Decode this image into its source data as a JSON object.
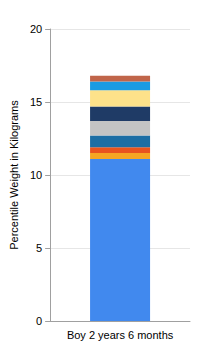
{
  "chart_data": {
    "type": "bar",
    "stacked": true,
    "ylabel": "Percentile Weight in Kilograms",
    "categories": [
      "Boy 2 years 6 months"
    ],
    "series": [
      {
        "color": "#4189ee",
        "values": [
          11.1
        ]
      },
      {
        "color": "#f5a623",
        "values": [
          0.4
        ]
      },
      {
        "color": "#e8541e",
        "values": [
          0.4
        ]
      },
      {
        "color": "#1c6ea4",
        "values": [
          0.8
        ]
      },
      {
        "color": "#c4c4c4",
        "values": [
          1.0
        ]
      },
      {
        "color": "#1f3b66",
        "values": [
          1.0
        ]
      },
      {
        "color": "#fde28a",
        "values": [
          1.1
        ]
      },
      {
        "color": "#1a9be3",
        "values": [
          0.6
        ]
      },
      {
        "color": "#c0654a",
        "values": [
          0.4
        ]
      }
    ],
    "ylim": [
      0,
      20
    ],
    "yticks": [
      0,
      5,
      10,
      15,
      20
    ],
    "grid": true
  }
}
